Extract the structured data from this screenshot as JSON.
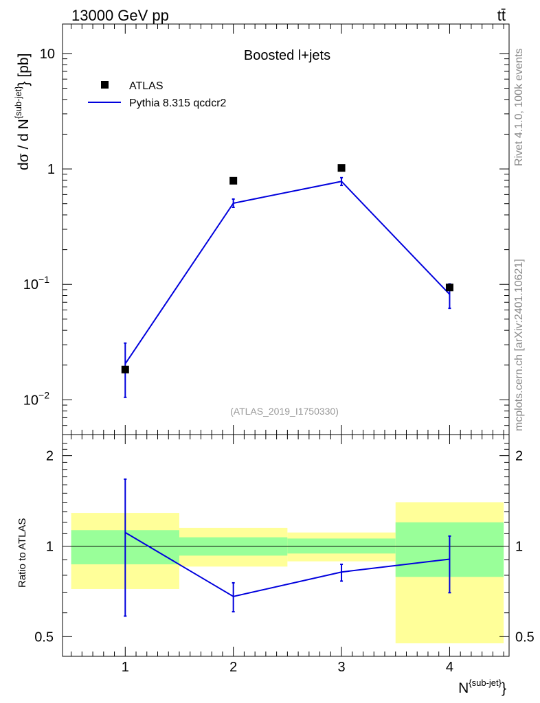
{
  "header": {
    "energy_label": "13000 GeV pp",
    "process_label": "tt̄"
  },
  "side_labels": {
    "rivet": "Rivet 4.1.0,  100k events",
    "mcplots": "mcplots.cern.ch [arXiv:2401.10621]"
  },
  "chart_data": [
    {
      "type": "scatter",
      "title": "Boosted l+jets",
      "analysis_id": "(ATLAS_2019_I1750330)",
      "ylabel_main": "dσ / d N",
      "ylabel_sup": "{sub-jet}",
      "ylabel_tail": "} [pb]",
      "yscale": "log",
      "ylim": [
        0.005,
        18
      ],
      "xlim": [
        0.42,
        4.55
      ],
      "yticks": [
        {
          "value": 0.01,
          "base": "10",
          "exp": "−2"
        },
        {
          "value": 0.1,
          "base": "10",
          "exp": "−1"
        },
        {
          "value": 1,
          "base": "1",
          "exp": ""
        },
        {
          "value": 10,
          "base": "10",
          "exp": ""
        }
      ],
      "legend": {
        "data_label": "ATLAS",
        "mc_label": "Pythia 8.315 qcdcr2",
        "position": "top-left"
      },
      "colors": {
        "data": "#000000",
        "mc": "#0000dd"
      },
      "x": [
        1,
        2,
        3,
        4
      ],
      "series": [
        {
          "name": "ATLAS",
          "values": [
            0.0183,
            0.79,
            1.02,
            0.094
          ]
        },
        {
          "name": "Pythia 8.315 qcdcr2",
          "values": [
            0.0205,
            0.505,
            0.78,
            0.082
          ],
          "err_low": [
            0.0105,
            0.465,
            0.72,
            0.062
          ],
          "err_high": [
            0.031,
            0.548,
            0.84,
            0.101
          ]
        }
      ]
    },
    {
      "type": "line",
      "ylabel": "Ratio to ATLAS",
      "xlabel": "N",
      "xlabel_sup": "{sub-jet}",
      "xlabel_tail": "}",
      "yscale": "log",
      "ylim": [
        0.43,
        2.35
      ],
      "yticks": [
        {
          "value": 0.5,
          "label": "0.5"
        },
        {
          "value": 1,
          "label": "1"
        },
        {
          "value": 2,
          "label": "2"
        }
      ],
      "xticks": [
        1,
        2,
        3,
        4
      ],
      "reference_line": 1,
      "colors": {
        "yellow": "#ffff99",
        "green": "#99ff99",
        "mc": "#0000dd"
      },
      "bins": [
        {
          "x0": 0.5,
          "x1": 1.5,
          "green": [
            0.87,
            1.13
          ],
          "yellow": [
            0.72,
            1.29
          ]
        },
        {
          "x0": 1.5,
          "x1": 2.5,
          "green": [
            0.93,
            1.07
          ],
          "yellow": [
            0.855,
            1.15
          ]
        },
        {
          "x0": 2.5,
          "x1": 3.5,
          "green": [
            0.945,
            1.06
          ],
          "yellow": [
            0.89,
            1.11
          ]
        },
        {
          "x0": 3.5,
          "x1": 4.5,
          "green": [
            0.79,
            1.2
          ],
          "yellow": [
            0.475,
            1.4
          ]
        }
      ],
      "x": [
        1,
        2,
        3,
        4
      ],
      "values": [
        1.11,
        0.68,
        0.82,
        0.905
      ],
      "err_low": [
        0.585,
        0.605,
        0.765,
        0.7
      ],
      "err_high": [
        1.67,
        0.755,
        0.87,
        1.08
      ]
    }
  ]
}
